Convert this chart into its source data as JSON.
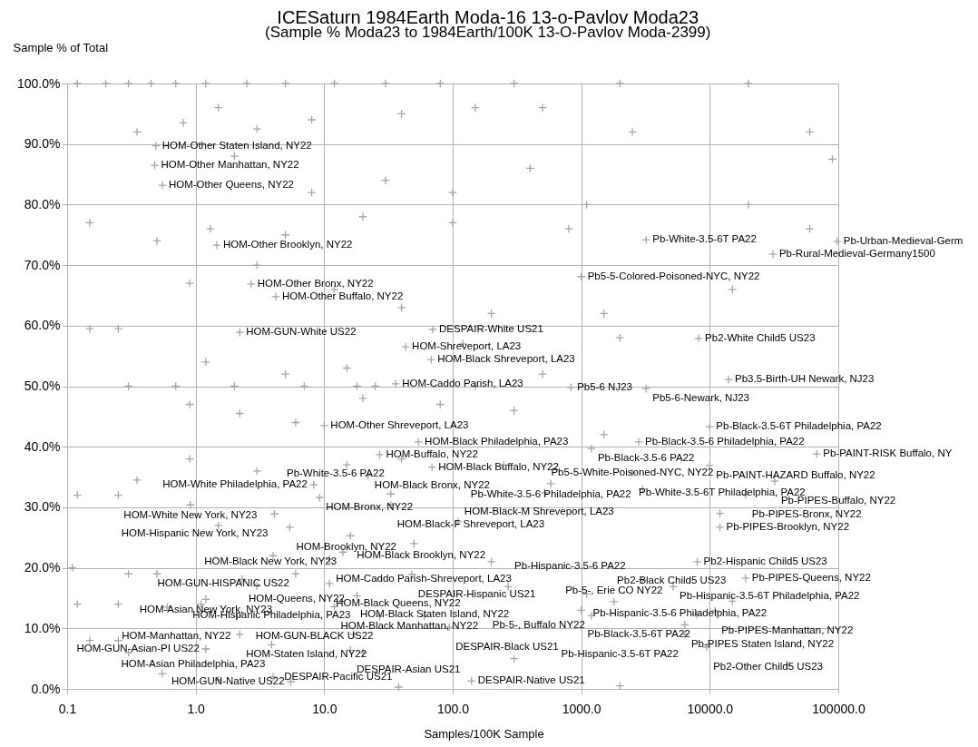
{
  "chart_data": {
    "type": "scatter",
    "title": "ICESaturn 1984Earth Moda-16 13-o-Pavlov Moda23",
    "subtitle": "(Sample % Moda23 to 1984Earth/100K 13-O-Pavlov Moda-2399)",
    "xlabel": "Samples/100K Sample",
    "ylabel": "Sample % of Total",
    "log": "x",
    "grid": true,
    "marker": "cross",
    "xlim": [
      0.1,
      100000
    ],
    "xticks": [
      0.1,
      {
        "value": 1,
        "label": "1.0"
      },
      {
        "value": 10,
        "label": "10.0"
      },
      {
        "value": 100,
        "label": "100.0"
      },
      {
        "value": 1000,
        "label": "1000.0"
      },
      {
        "value": 10000,
        "label": "10000.0"
      },
      {
        "value": 100000,
        "label": "100000.0"
      }
    ],
    "ylim": [
      0,
      100
    ],
    "yticks": [
      {
        "value": 0,
        "label": "0.0%"
      },
      {
        "value": 10,
        "label": "10.0%"
      },
      {
        "value": 20,
        "label": "20.0%"
      },
      {
        "value": 30,
        "label": "30.0%"
      },
      {
        "value": 40,
        "label": "40.0%"
      },
      {
        "value": 50,
        "label": "50.0%"
      },
      {
        "value": 60,
        "label": "60.0%"
      },
      {
        "value": 70,
        "label": "70.0%"
      },
      {
        "value": 80,
        "label": "80.0%"
      },
      {
        "value": 90,
        "label": "90.0%"
      },
      {
        "value": 100,
        "label": "100.0%"
      }
    ],
    "series": [
      {
        "color": "#a6a6a6",
        "x": [
          0.12,
          0.2,
          0.3,
          0.45,
          0.7,
          1.2,
          2.5,
          5,
          12,
          30,
          80,
          300,
          2000,
          20000,
          0.35,
          0.8,
          1.5,
          3,
          8,
          40,
          150,
          500,
          2500,
          60000,
          2,
          8,
          30,
          100,
          400,
          1100,
          20000,
          90000,
          0.15,
          0.5,
          1.3,
          5,
          20,
          100,
          800,
          60000,
          0.9,
          3,
          12,
          40,
          200,
          1500,
          15000,
          0.15,
          0.25,
          1.2,
          5,
          15,
          120,
          500,
          2000,
          0.3,
          0.7,
          2,
          7,
          18,
          25,
          150,
          0.9,
          2.2,
          6,
          20,
          80,
          300,
          1500,
          0.12,
          0.25,
          0.35,
          0.9,
          3,
          15,
          40,
          250,
          3000,
          0.11,
          0.3,
          0.5,
          1.5,
          4,
          50,
          200,
          12000,
          0.12,
          0.25,
          0.6,
          1.1,
          3,
          60,
          1000,
          3000,
          0.15,
          0.25,
          0.3,
          0.55,
          1.5,
          4,
          20,
          300,
          2000,
          40000,
          0.49,
          0.48,
          0.55,
          1.46,
          2.7,
          4.2,
          2.2,
          70,
          43,
          68,
          36,
          10,
          54,
          27,
          69,
          22,
          8.3,
          9.2,
          33,
          33,
          0.91,
          4.1,
          5.4,
          110,
          16,
          14,
          11,
          6,
          48,
          2.3,
          11,
          18,
          1.2,
          12,
          2.1,
          27,
          94,
          2.2,
          17,
          3.9,
          1.2,
          16,
          5.5,
          140,
          38,
          3200,
          98000,
          31000,
          1000,
          8200,
          14000,
          830,
          3200,
          10000,
          2800,
          1200,
          68000,
          10000,
          2500,
          32000,
          580,
          520,
          19000,
          12000,
          8000,
          19000,
          270,
          5200,
          1100,
          1800,
          15000,
          11000,
          7900,
          1200,
          6400,
          6400,
          9500
        ],
        "values": [
          100,
          100,
          100,
          100,
          100,
          100,
          100,
          100,
          100,
          100,
          100,
          100,
          100,
          100,
          92,
          93.5,
          96,
          92.5,
          94,
          95,
          96,
          96,
          92,
          92,
          88,
          82,
          84,
          82,
          86,
          80,
          80,
          87.5,
          77,
          74,
          76,
          75,
          78,
          77,
          76,
          76,
          67,
          70,
          66,
          63,
          62,
          62,
          66,
          59.5,
          59.5,
          54,
          52,
          53,
          57,
          52,
          58,
          50,
          50,
          50,
          50,
          50,
          50,
          50,
          47,
          45.5,
          44,
          48,
          47,
          46,
          42,
          32,
          32,
          34.5,
          38,
          36,
          37,
          38,
          37,
          33,
          20,
          19,
          19,
          27,
          22,
          24,
          21,
          29,
          14,
          14,
          13.5,
          14,
          17,
          12,
          13,
          18,
          8,
          8,
          6,
          2.5,
          1.5,
          2,
          6,
          5,
          0.5,
          4,
          89.7,
          86.5,
          83.2,
          73.3,
          66.9,
          64.8,
          58.9,
          59.4,
          56.5,
          54.4,
          50.4,
          43.5,
          40.8,
          38.7,
          36.6,
          35.2,
          33.7,
          31.6,
          32.2,
          30.4,
          30.4,
          28.9,
          26.7,
          27.6,
          25.3,
          22.6,
          21.4,
          19,
          18.9,
          18.1,
          17.4,
          15.4,
          14.8,
          13.6,
          12,
          12,
          10.2,
          9,
          9,
          7.3,
          6.6,
          6.4,
          1.2,
          1.3,
          0.3,
          74.2,
          73.9,
          71.8,
          68.1,
          57.9,
          51.1,
          49.8,
          49.6,
          43.3,
          40.8,
          39.7,
          38.8,
          36.9,
          35.7,
          34.3,
          33.9,
          32.4,
          32.1,
          26.7,
          21,
          18.3,
          16.9,
          16.9,
          15.7,
          14.4,
          14.5,
          12.9,
          12.3,
          12.1,
          10.6,
          9,
          6.9
        ]
      }
    ],
    "annotations": [
      {
        "text": "HOM-Other Staten Island, NY22",
        "x": 0.49,
        "y": 89.7
      },
      {
        "text": "HOM-Other Manhattan, NY22",
        "x": 0.48,
        "y": 86.5
      },
      {
        "text": "HOM-Other Queens, NY22",
        "x": 0.55,
        "y": 83.2
      },
      {
        "text": "HOM-Other Brooklyn, NY22",
        "x": 1.46,
        "y": 73.3
      },
      {
        "text": "HOM-Other Bronx, NY22",
        "x": 2.7,
        "y": 66.9
      },
      {
        "text": "HOM-Other Buffalo, NY22",
        "x": 4.2,
        "y": 64.8
      },
      {
        "text": "HOM-GUN-White US22",
        "x": 2.2,
        "y": 58.9
      },
      {
        "text": "DESPAIR-White US21",
        "x": 70,
        "y": 59.4
      },
      {
        "text": "HOM-Shreveport, LA23",
        "x": 43,
        "y": 56.5
      },
      {
        "text": "HOM-Black Shreveport, LA23",
        "x": 68,
        "y": 54.4
      },
      {
        "text": "HOM-Caddo Parish, LA23",
        "x": 36,
        "y": 50.4
      },
      {
        "text": "HOM-Other Shreveport, LA23",
        "x": 10,
        "y": 43.5
      },
      {
        "text": "HOM-Black Philadelphia, PA23",
        "x": 54,
        "y": 40.8
      },
      {
        "text": "HOM-Buffalo, NY22",
        "x": 27,
        "y": 38.7
      },
      {
        "text": "HOM-Black Buffalo, NY22",
        "x": 69,
        "y": 36.6
      },
      {
        "text": "HOM-Black Bronx, NY22",
        "x": 22,
        "y": 35.2
      },
      {
        "text": "HOM-White Philadelphia, PA22",
        "x": 8.3,
        "y": 33.7
      },
      {
        "text": "HOM-Bronx, NY22",
        "x": 9.2,
        "y": 31.6
      },
      {
        "text": "Pb-White-3.5-6 PA22",
        "x": 33,
        "y": 32.2
      },
      {
        "text": "HOM-Black-F Shreveport, LA23",
        "x": 33,
        "y": 30.4
      },
      {
        "text": "HOM-White New York, NY23",
        "x": 0.91,
        "y": 30.4
      },
      {
        "text": "HOM-Hispanic New York, NY23",
        "x": 4.1,
        "y": 28.9
      },
      {
        "text": "HOM-Brooklyn, NY22",
        "x": 5.4,
        "y": 26.7
      },
      {
        "text": "HOM-Black-M Shreveport, LA23",
        "x": 110,
        "y": 27.6
      },
      {
        "text": "HOM-Black Brooklyn, NY22",
        "x": 16,
        "y": 25.3
      },
      {
        "text": "HOM-Black New York, NY23",
        "x": 14,
        "y": 22.6
      },
      {
        "text": "HOM-Caddo Parish-Shreveport, LA23",
        "x": 11,
        "y": 21.4
      },
      {
        "text": "HOM-GUN-HISPANIC US22",
        "x": 6,
        "y": 19
      },
      {
        "text": "DESPAIR-Hispanic US21",
        "x": 48,
        "y": 18.9
      },
      {
        "text": "HOM-Queens, NY22",
        "x": 2.3,
        "y": 18.1
      },
      {
        "text": "HOM-Black Queens, NY22",
        "x": 11,
        "y": 17.4
      },
      {
        "text": "HOM-Hispanic Philadelphia, PA23",
        "x": 18,
        "y": 15.4
      },
      {
        "text": "HOM-Asian New York, NY23",
        "x": 1.2,
        "y": 14.8
      },
      {
        "text": "HOM-Black Manhattan, NY22",
        "x": 12,
        "y": 13.6
      },
      {
        "text": "HOM-Manhattan, NY22",
        "x": 2.1,
        "y": 12
      },
      {
        "text": "HOM-GUN-BLACK US22",
        "x": 27,
        "y": 12
      },
      {
        "text": "DESPAIR-Black US21",
        "x": 94,
        "y": 10.2
      },
      {
        "text": "HOM-Staten Island, NY22",
        "x": 2.2,
        "y": 9
      },
      {
        "text": "HOM-Black Staten Island, NY22",
        "x": 17,
        "y": 9
      },
      {
        "text": "HOM-Asian Philadelphia, PA23",
        "x": 3.9,
        "y": 7.3
      },
      {
        "text": "HOM-GUN-Asian-PI US22",
        "x": 1.2,
        "y": 6.6
      },
      {
        "text": "DESPAIR-Asian US21",
        "x": 16,
        "y": 6.4
      },
      {
        "text": "HOM-GUN-Native US22",
        "x": 5.5,
        "y": 1.2
      },
      {
        "text": "DESPAIR-Native US21",
        "x": 140,
        "y": 1.3
      },
      {
        "text": "DESPAIR-Pacific US21",
        "x": 38,
        "y": 0.3
      },
      {
        "text": "Pb-White-3.5-6T PA22",
        "x": 3200,
        "y": 74.2
      },
      {
        "text": "Pb-Urban-Medieval-Germ",
        "x": 98000,
        "y": 73.9
      },
      {
        "text": "Pb-Rural-Medieval-Germany1500",
        "x": 31000,
        "y": 71.8
      },
      {
        "text": "Pb5-5-Colored-Poisoned-NYC, NY22",
        "x": 1000,
        "y": 68.1
      },
      {
        "text": "Pb2-White Child5 US23",
        "x": 8200,
        "y": 57.9
      },
      {
        "text": "Pb3.5-Birth-UH Newark, NJ23",
        "x": 14000,
        "y": 51.1
      },
      {
        "text": "Pb5-6 NJ23",
        "x": 830,
        "y": 49.8
      },
      {
        "text": "Pb5-6-Newark, NJ23",
        "x": 3200,
        "y": 49.6
      },
      {
        "text": "Pb-Black-3.5-6T Philadelphia, PA22",
        "x": 10000,
        "y": 43.3
      },
      {
        "text": "Pb-Black-3.5-6 Philadelphia, PA22",
        "x": 2800,
        "y": 40.8
      },
      {
        "text": "Pb-Black-3.5-6 PA22",
        "x": 1200,
        "y": 39.7
      },
      {
        "text": "Pb-PAINT-RISK Buffalo, NY",
        "x": 68000,
        "y": 38.8
      },
      {
        "text": "Pb-PAINT-HAZARD Buffalo, NY22",
        "x": 10000,
        "y": 36.9
      },
      {
        "text": "Pb-White-3.5-6T Philadelphia, PA22",
        "x": 2500,
        "y": 35.7
      },
      {
        "text": "Pb-PIPES-Buffalo, NY22",
        "x": 32000,
        "y": 34.3
      },
      {
        "text": "Pb-White-3.5-6 Philadelphia, PA22",
        "x": 580,
        "y": 33.9
      },
      {
        "text": "Pb5-5-White-Poisoned-NYC, NY22",
        "x": 520,
        "y": 32.4
      },
      {
        "text": "Pb-PIPES-Bronx, NY22",
        "x": 19000,
        "y": 32.1
      },
      {
        "text": "Pb-PIPES-Brooklyn, NY22",
        "x": 12000,
        "y": 26.7
      },
      {
        "text": "Pb2-Hispanic Child5 US23",
        "x": 8000,
        "y": 21
      },
      {
        "text": "Pb-PIPES-Queens, NY22",
        "x": 19000,
        "y": 18.3
      },
      {
        "text": "Pb-Hispanic-3.5-6 PA22",
        "x": 270,
        "y": 16.9
      },
      {
        "text": "Pb-Hispanic-3.5-6T Philadelphia, PA22",
        "x": 5200,
        "y": 16.9
      },
      {
        "text": "Pb-Hispanic-3.5-6 Philadelphia, PA22",
        "x": 1100,
        "y": 15.7
      },
      {
        "text": "Pb-5-, Erie CO NY22",
        "x": 1800,
        "y": 14.4
      },
      {
        "text": "Pb2-Black Child5 US23",
        "x": 15000,
        "y": 14.5
      },
      {
        "text": "Pb-PIPES-Manhattan, NY22",
        "x": 11000,
        "y": 12.9
      },
      {
        "text": "Pb-Black-3.5-6T PA22",
        "x": 7900,
        "y": 12.3
      },
      {
        "text": "Pb-5-, Buffalo NY22",
        "x": 1200,
        "y": 12.1
      },
      {
        "text": "Pb-PIPES Staten Island, NY22",
        "x": 6400,
        "y": 10.6
      },
      {
        "text": "Pb-Hispanic-3.5-6T PA22",
        "x": 6400,
        "y": 9
      },
      {
        "text": "Pb2-Other Child5 US23",
        "x": 9500,
        "y": 6.9
      }
    ]
  }
}
